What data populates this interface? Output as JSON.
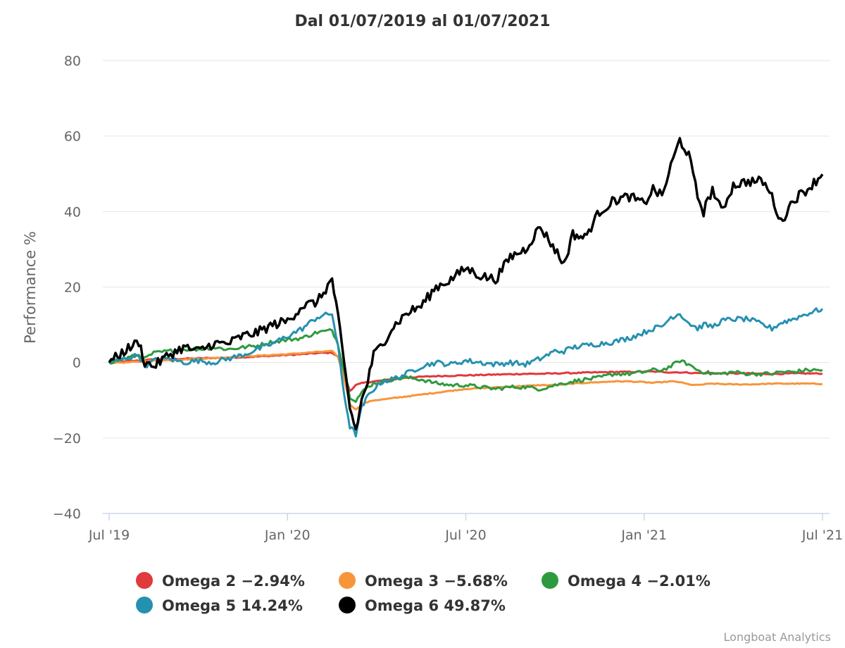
{
  "chart_data": {
    "type": "line",
    "title": "Dal 01/07/2019 al 01/07/2021",
    "xlabel": "",
    "ylabel": "Performance %",
    "ylim": [
      -40,
      80
    ],
    "yticks": [
      80,
      60,
      40,
      20,
      0,
      -20,
      -40
    ],
    "ytick_labels": [
      "80",
      "60",
      "40",
      "20",
      "0",
      "−20",
      "−40"
    ],
    "xlim_months": [
      0,
      24
    ],
    "xticks_months": [
      0,
      6,
      12,
      18,
      24
    ],
    "xtick_labels": [
      "Jul '19",
      "Jan '20",
      "Jul '20",
      "Jan '21",
      "Jul '21"
    ],
    "grid": true,
    "legend_position": "bottom",
    "credit": "Longboat Analytics",
    "x_months": [
      0,
      0.5,
      1,
      1.2,
      1.5,
      2,
      2.5,
      3,
      3.5,
      4,
      4.5,
      5,
      5.5,
      6,
      6.5,
      7,
      7.5,
      7.7,
      7.9,
      8.1,
      8.3,
      8.5,
      8.7,
      8.9,
      9.2,
      9.5,
      10,
      10.5,
      11,
      11.5,
      12,
      12.5,
      13,
      13.5,
      14,
      14.5,
      15,
      15.3,
      15.6,
      16,
      16.5,
      17,
      17.5,
      18,
      18.3,
      18.6,
      18.9,
      19.2,
      19.5,
      19.8,
      20,
      20.3,
      20.6,
      21,
      21.5,
      22,
      22.3,
      22.6,
      23,
      23.5,
      24
    ],
    "series": [
      {
        "name": "Omega 2",
        "legend_label": "Omega 2 −2.94%",
        "color": "#e0393e",
        "values": [
          0,
          0.3,
          0.5,
          0.6,
          0.8,
          0.9,
          1.0,
          1.1,
          1.2,
          1.3,
          1.4,
          1.6,
          1.8,
          2.0,
          2.2,
          2.5,
          2.6,
          1.5,
          -3.0,
          -7.5,
          -6.0,
          -5.5,
          -5.2,
          -5.0,
          -4.8,
          -4.5,
          -4.0,
          -3.8,
          -3.6,
          -3.5,
          -3.4,
          -3.3,
          -3.2,
          -3.1,
          -3.0,
          -3.0,
          -2.9,
          -2.8,
          -2.8,
          -2.7,
          -2.6,
          -2.5,
          -2.5,
          -2.4,
          -2.4,
          -2.5,
          -2.6,
          -2.6,
          -2.7,
          -2.8,
          -2.8,
          -2.8,
          -2.9,
          -2.9,
          -2.9,
          -3.0,
          -3.0,
          -3.0,
          -2.9,
          -2.9,
          -2.94
        ]
      },
      {
        "name": "Omega 3",
        "legend_label": "Omega 3 −5.68%",
        "color": "#f7953b",
        "values": [
          0,
          0.0,
          0.2,
          0.4,
          0.5,
          0.6,
          0.8,
          1.0,
          1.2,
          1.4,
          1.6,
          1.8,
          2.0,
          2.2,
          2.5,
          2.8,
          3.0,
          1.5,
          -4.0,
          -11.0,
          -12.5,
          -11.0,
          -10.5,
          -10.0,
          -9.8,
          -9.5,
          -9.0,
          -8.5,
          -8.0,
          -7.5,
          -7.0,
          -6.8,
          -6.6,
          -6.4,
          -6.2,
          -6.0,
          -6.0,
          -5.8,
          -5.6,
          -5.4,
          -5.2,
          -5.0,
          -5.0,
          -5.2,
          -5.4,
          -5.2,
          -5.0,
          -5.2,
          -5.8,
          -6.0,
          -5.8,
          -5.6,
          -5.7,
          -5.8,
          -5.8,
          -5.7,
          -5.6,
          -5.6,
          -5.6,
          -5.6,
          -5.68
        ]
      },
      {
        "name": "Omega 4",
        "legend_label": "Omega 4 −2.01%",
        "color": "#2e9a3e",
        "values": [
          0,
          1.0,
          2.0,
          1.0,
          2.5,
          3.0,
          3.5,
          3.5,
          4.0,
          3.5,
          4.0,
          4.5,
          5.5,
          6.0,
          6.5,
          8.0,
          8.5,
          5.0,
          -2.0,
          -9.0,
          -10.0,
          -8.0,
          -6.5,
          -5.5,
          -5.0,
          -4.5,
          -4.0,
          -4.5,
          -5.5,
          -6.0,
          -6.0,
          -6.5,
          -7.0,
          -6.5,
          -6.5,
          -7.0,
          -6.0,
          -5.5,
          -5.0,
          -4.5,
          -4.0,
          -3.0,
          -3.0,
          -2.5,
          -2.0,
          -2.0,
          -1.0,
          0.5,
          -0.5,
          -2.0,
          -2.5,
          -3.0,
          -3.0,
          -2.5,
          -3.0,
          -3.0,
          -3.0,
          -2.5,
          -2.5,
          -2.0,
          -2.01
        ]
      },
      {
        "name": "Omega 5",
        "legend_label": "Omega 5 14.24%",
        "color": "#2591b0",
        "values": [
          0,
          1.0,
          2.0,
          -1.0,
          0.5,
          1.0,
          0.0,
          0.5,
          0.0,
          1.0,
          2.0,
          3.5,
          5.0,
          7.0,
          9.0,
          12.0,
          13.0,
          4.0,
          -8.0,
          -17.0,
          -19.0,
          -12.0,
          -9.0,
          -7.0,
          -5.0,
          -4.5,
          -3.0,
          -1.0,
          0.0,
          -0.5,
          0.5,
          0.0,
          -0.5,
          0.0,
          -0.5,
          1.0,
          3.0,
          3.0,
          4.0,
          4.5,
          5.0,
          5.5,
          6.5,
          8.0,
          9.0,
          9.5,
          12.0,
          13.0,
          10.5,
          9.0,
          10.0,
          9.5,
          11.0,
          11.5,
          11.5,
          10.0,
          9.0,
          10.5,
          11.5,
          13.0,
          14.24
        ]
      },
      {
        "name": "Omega 6",
        "legend_label": "Omega 6 49.87%",
        "color": "#000000",
        "values": [
          0,
          3.0,
          5.5,
          0.0,
          -1.0,
          2.0,
          4.0,
          3.0,
          5.0,
          5.0,
          7.0,
          8.0,
          10.0,
          11.0,
          15.0,
          16.0,
          22.0,
          12.0,
          0.0,
          -12.0,
          -18.0,
          -10.0,
          -5.0,
          2.0,
          5.0,
          9.0,
          13.0,
          15.0,
          20.0,
          22.0,
          25.0,
          23.0,
          22.0,
          28.0,
          30.0,
          36.0,
          30.0,
          26.0,
          34.0,
          33.0,
          40.0,
          43.0,
          44.0,
          42.0,
          46.0,
          44.0,
          52.0,
          59.0,
          55.0,
          44.0,
          40.0,
          46.0,
          40.0,
          47.0,
          48.0,
          48.0,
          44.0,
          37.0,
          43.0,
          46.0,
          49.87
        ]
      }
    ]
  }
}
